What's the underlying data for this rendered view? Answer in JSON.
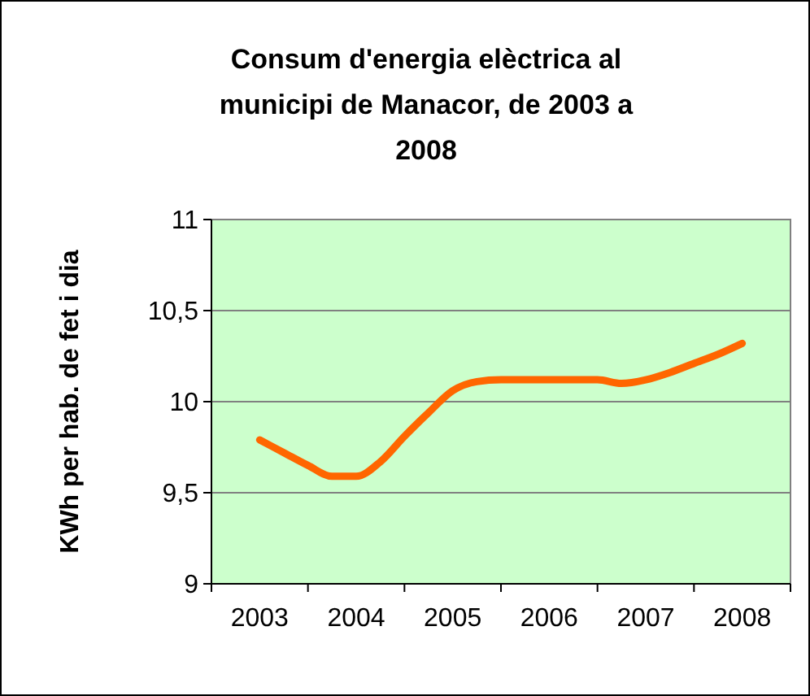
{
  "chart_data": {
    "type": "line",
    "title": "Consum d'energia elèctrica al municipi de Manacor, de 2003 a 2008",
    "ylabel": "KWh per hab. de fet i dia",
    "categories": [
      "2003",
      null,
      null,
      null,
      "2004",
      null,
      null,
      null,
      "2005",
      null,
      null,
      null,
      "2006",
      null,
      null,
      null,
      "2007",
      null,
      null,
      null,
      "2008"
    ],
    "series": [
      {
        "color": "#ff6600",
        "values": [
          9.79,
          9.72,
          9.65,
          9.59,
          9.59,
          9.67,
          9.81,
          9.94,
          10.06,
          10.11,
          10.12,
          10.12,
          10.12,
          10.12,
          10.12,
          10.1,
          10.12,
          10.16,
          10.21,
          10.26,
          10.32
        ]
      }
    ],
    "ylim": [
      9,
      11
    ],
    "yticks": [
      {
        "value": 9,
        "label": "9"
      },
      {
        "value": 9.5,
        "label": "9,5"
      },
      {
        "value": 10,
        "label": "10"
      },
      {
        "value": 10.5,
        "label": "10,5"
      },
      {
        "value": 11,
        "label": "11"
      }
    ],
    "grid": "y",
    "marker": "none",
    "line_style": "solid"
  }
}
